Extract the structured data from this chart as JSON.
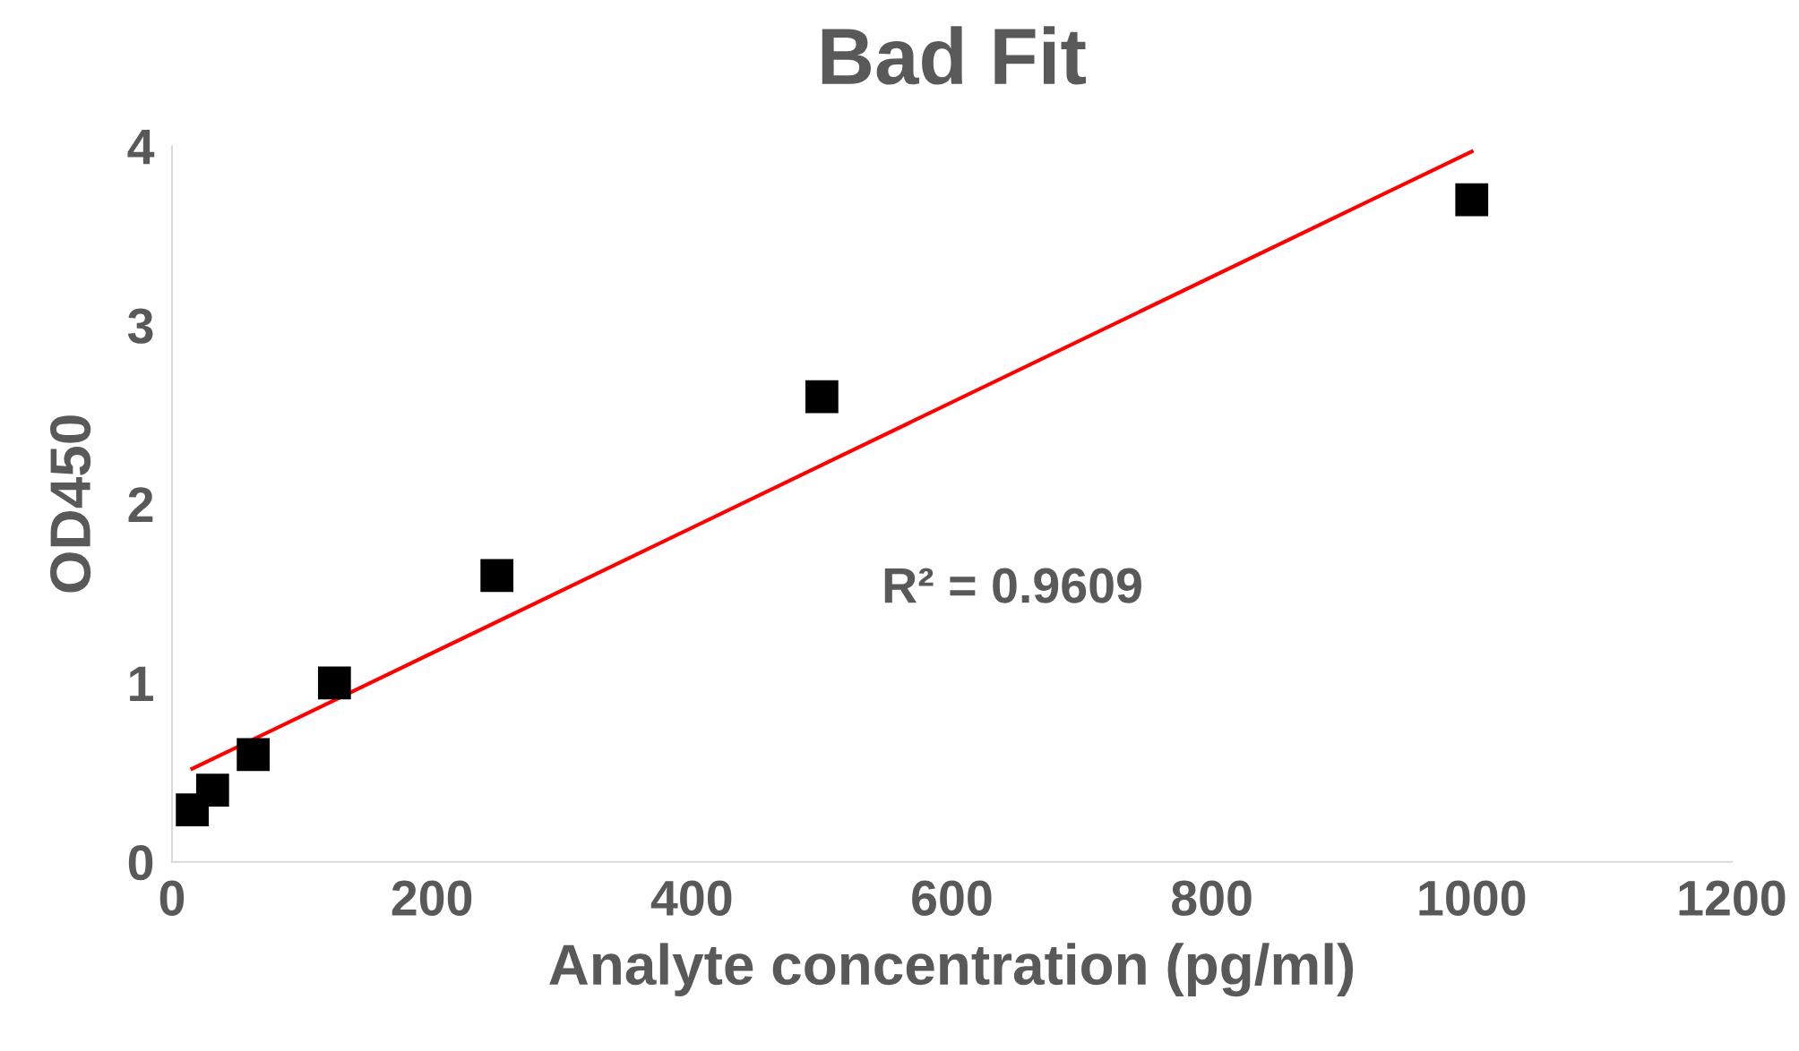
{
  "chart_data": {
    "type": "scatter",
    "title": "Bad Fit",
    "xlabel": "Analyte concentration (pg/ml)",
    "ylabel": "OD450",
    "x": [
      15.625,
      31.25,
      62.5,
      125,
      250,
      500,
      1000
    ],
    "series": [
      {
        "marker": "square",
        "color": "#000000",
        "values": [
          0.29,
          0.4,
          0.6,
          1.0,
          1.6,
          2.6,
          3.7
        ]
      },
      {
        "type": "line",
        "color": "#ff0000",
        "x": [
          15.625,
          1000
        ],
        "values": [
          0.52,
          3.97
        ]
      }
    ],
    "xlim": [
      0,
      1200
    ],
    "ylim": [
      0,
      4
    ],
    "xticks": [
      0,
      200,
      400,
      600,
      800,
      1000,
      1200
    ],
    "yticks": [
      0,
      1,
      2,
      3,
      4
    ],
    "grid": false,
    "legend": false,
    "annotations": [
      "R² = 0.9609"
    ]
  }
}
